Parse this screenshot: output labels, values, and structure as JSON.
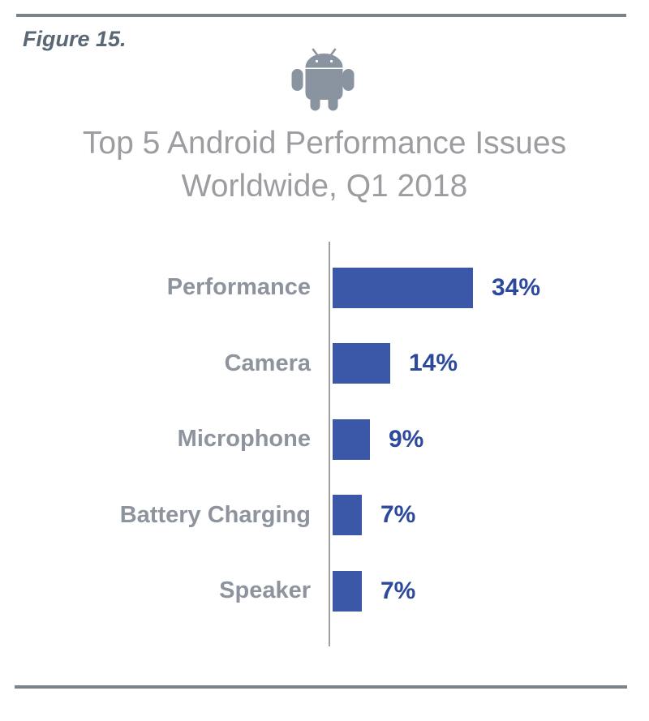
{
  "figure": {
    "label": "Figure 15."
  },
  "header": {
    "icon": "android-robot-icon",
    "title_line1": "Top 5 Android Performance Issues",
    "title_line2": "Worldwide, Q1 2018"
  },
  "chart_data": {
    "type": "bar",
    "orientation": "horizontal",
    "title": "Top 5 Android Performance Issues Worldwide, Q1 2018",
    "categories": [
      "Performance",
      "Camera",
      "Microphone",
      "Battery Charging",
      "Speaker"
    ],
    "values": [
      34,
      14,
      9,
      7,
      7
    ],
    "value_labels": [
      "34%",
      "14%",
      "9%",
      "7%",
      "7%"
    ],
    "xlabel": "",
    "ylabel": "",
    "xlim": [
      0,
      40
    ],
    "grid": false,
    "legend": false,
    "data_labels": "outside-end"
  },
  "colors": {
    "bar": "#3b58a8",
    "value_label": "#2c499e",
    "category_label": "#8e949d",
    "title": "#9b9da1",
    "figure_label": "#5a6774",
    "divider": "#79838b",
    "axis": "#9aa0a4",
    "android_icon": "#8a93a0"
  }
}
